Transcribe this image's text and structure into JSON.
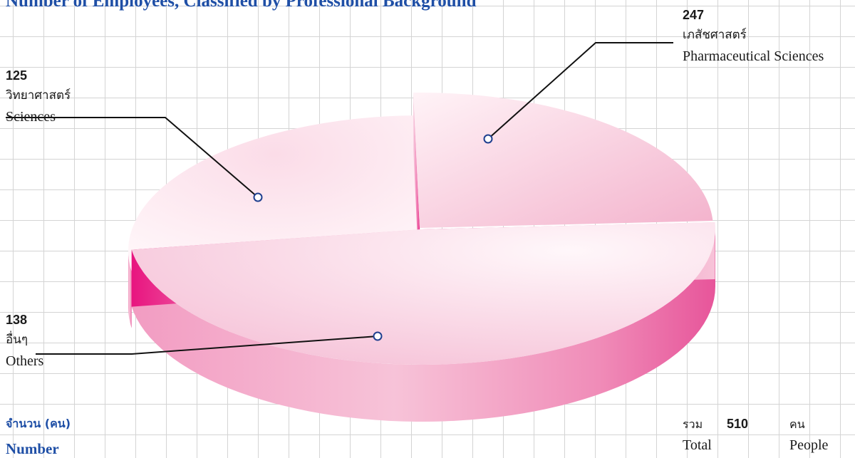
{
  "chart_data": {
    "type": "pie",
    "title": "Number of Employees, Classified by Professional Background",
    "slices": [
      {
        "value": 247,
        "label_th": "เภสัชศาสตร์",
        "label_en": "Pharmaceutical Sciences",
        "color": "#f7c7da"
      },
      {
        "value": 138,
        "label_th": "อื่นๆ",
        "label_en": "Others",
        "color": "#f9d4e3"
      },
      {
        "value": 125,
        "label_th": "วิทยาศาสตร์",
        "label_en": "Sciences",
        "color": "#f6c2d6"
      }
    ],
    "unit_th": "จำนวน (คน)",
    "unit_en": "Number",
    "total": {
      "label_th": "รวม",
      "label_en": "Total",
      "value": 510,
      "unit_th": "คน",
      "unit_en": "People"
    },
    "accent_color": "#e8147f"
  }
}
